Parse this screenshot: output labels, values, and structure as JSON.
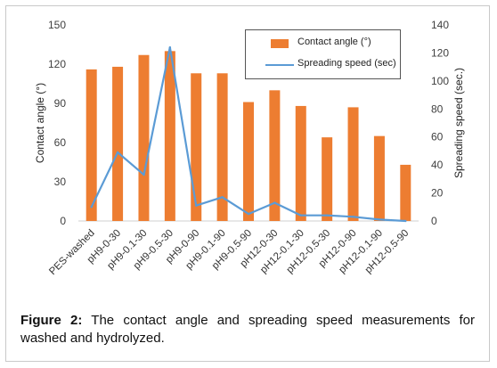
{
  "chart_data": {
    "type": "bar",
    "categories": [
      "PES-washed",
      "pH9-0-30",
      "pH9-0.1-30",
      "pH9-0.5-30",
      "pH9-0-90",
      "pH9-0.1-90",
      "pH9-0.5-90",
      "pH12-0-30",
      "pH12-0.1-30",
      "pH12-0.5-30",
      "pH12-0-90",
      "pH12-0.1-90",
      "pH12-0.5-90"
    ],
    "series": [
      {
        "name": "Contact angle (°)",
        "type": "bar",
        "axis": "left",
        "color": "#ED7D31",
        "values": [
          116,
          118,
          127,
          130,
          113,
          113,
          91,
          100,
          88,
          64,
          87,
          65,
          43
        ]
      },
      {
        "name": "Spreading speed (sec)",
        "type": "line",
        "axis": "right",
        "color": "#5B9BD5",
        "values": [
          10,
          49,
          33,
          124,
          11,
          17,
          5,
          13,
          4,
          4,
          3,
          1,
          0
        ]
      }
    ],
    "ylabel_left": "Contact angle (°)",
    "ylabel_right": "Spreading speed (sec.)",
    "ylim_left": [
      0,
      150
    ],
    "yticks_left": [
      0,
      30,
      60,
      90,
      120,
      150
    ],
    "ylim_right": [
      0,
      140
    ],
    "yticks_right": [
      0,
      20,
      40,
      60,
      80,
      100,
      120,
      140
    ],
    "legend_placement": "top-right",
    "grid": false
  },
  "caption": {
    "lead": "Figure 2:",
    "text": " The contact angle and spreading speed measurements for washed and hydrolyzed."
  }
}
